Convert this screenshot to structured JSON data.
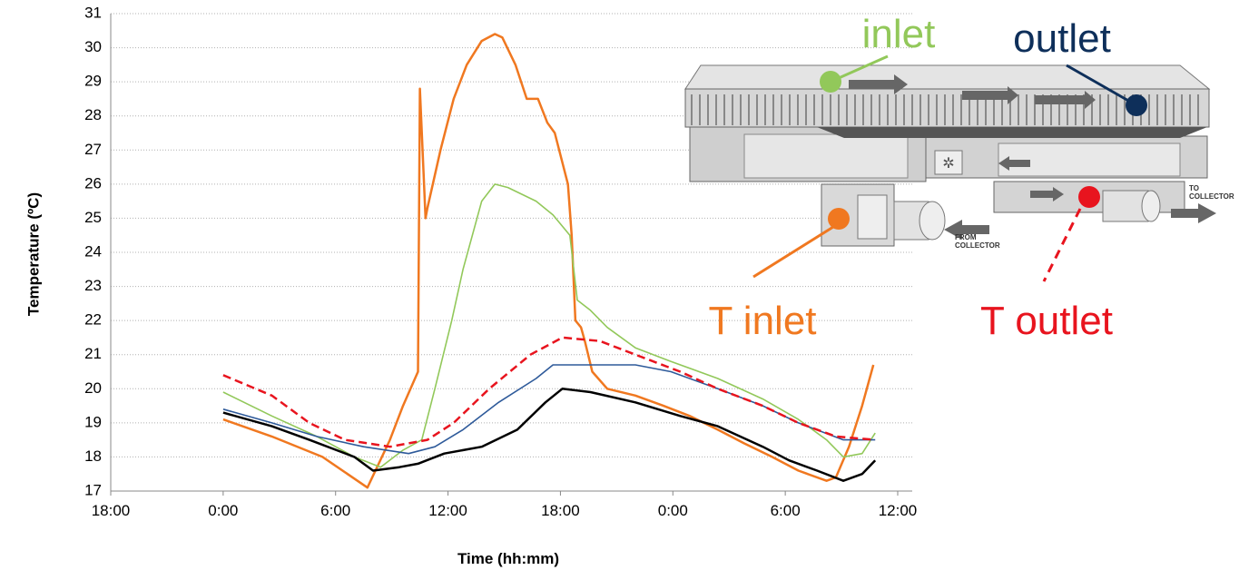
{
  "chart_data": {
    "type": "line",
    "y_label": "Temperature (ºC)",
    "x_label": "Time (hh:mm)",
    "xlim": [
      0,
      42
    ],
    "xticks": [
      {
        "value": 0,
        "label": "18:00"
      },
      {
        "value": 6,
        "label": "0:00"
      },
      {
        "value": 12,
        "label": "6:00"
      },
      {
        "value": 18,
        "label": "12:00"
      },
      {
        "value": 24,
        "label": "18:00"
      },
      {
        "value": 30,
        "label": "0:00"
      },
      {
        "value": 36,
        "label": "6:00"
      },
      {
        "value": 42,
        "label": "12:00"
      }
    ],
    "ylim": [
      17,
      31
    ],
    "yticks": [
      17,
      18,
      19,
      20,
      21,
      22,
      23,
      24,
      25,
      26,
      27,
      28,
      29,
      30,
      31
    ],
    "grid": true,
    "series": [
      {
        "name": "T inlet",
        "color": "#f07820",
        "line_width": 2.5,
        "dashed": false,
        "x": [
          6,
          8.6,
          11.3,
          13.7,
          14.9,
          15.6,
          16.4,
          16.5,
          16.8,
          16.9,
          17.6,
          18.3,
          19.0,
          19.8,
          20.5,
          20.9,
          21.6,
          22.2,
          22.8,
          23.3,
          23.7,
          24.4,
          24.6,
          24.8,
          25.1,
          25.3,
          25.7,
          26.5,
          28.0,
          29.5,
          30.9,
          32.4,
          33.8,
          35.3,
          36.7,
          38.2,
          38.7,
          39.4,
          40.1,
          40.7
        ],
        "values": [
          19.1,
          18.6,
          18.0,
          17.1,
          18.5,
          19.5,
          20.5,
          28.8,
          25.0,
          25.3,
          27.0,
          28.5,
          29.5,
          30.2,
          30.4,
          30.3,
          29.5,
          28.5,
          28.5,
          27.8,
          27.5,
          26.0,
          24.5,
          22.0,
          21.8,
          21.4,
          20.5,
          20.0,
          19.8,
          19.5,
          19.2,
          18.8,
          18.4,
          18.0,
          17.6,
          17.3,
          17.4,
          18.3,
          19.5,
          20.7
        ]
      },
      {
        "name": "inlet",
        "color": "#92c85a",
        "line_width": 1.6,
        "dashed": false,
        "x": [
          6,
          8.6,
          11.0,
          13.0,
          14.4,
          15.6,
          16.6,
          17.3,
          18.2,
          18.8,
          19.8,
          20.5,
          21.2,
          22.7,
          23.6,
          24.5,
          24.9,
          25.6,
          26.5,
          28.0,
          29.9,
          32.4,
          34.8,
          36.7,
          38.2,
          39.1,
          40.1,
          40.8
        ],
        "values": [
          19.9,
          19.2,
          18.6,
          18.0,
          17.7,
          18.2,
          18.5,
          20.0,
          22.0,
          23.5,
          25.5,
          26.0,
          25.9,
          25.5,
          25.1,
          24.5,
          22.6,
          22.3,
          21.8,
          21.2,
          20.8,
          20.3,
          19.7,
          19.1,
          18.5,
          18.0,
          18.1,
          18.7
        ]
      },
      {
        "name": "outlet",
        "color": "#2e5a9a",
        "line_width": 1.6,
        "dashed": false,
        "x": [
          6,
          8.6,
          11.0,
          13.5,
          15.9,
          17.3,
          18.8,
          20.7,
          22.7,
          23.6,
          28.0,
          29.9,
          32.4,
          34.8,
          36.7,
          39.1,
          40.8
        ],
        "values": [
          19.4,
          19.0,
          18.6,
          18.3,
          18.1,
          18.3,
          18.8,
          19.6,
          20.3,
          20.7,
          20.7,
          20.5,
          20.0,
          19.5,
          19.0,
          18.5,
          18.5
        ]
      },
      {
        "name": "T outlet",
        "color": "#e8141e",
        "line_width": 2.5,
        "dashed": true,
        "x": [
          6,
          8.6,
          10.6,
          12.5,
          14.9,
          16.9,
          18.3,
          20.2,
          22.4,
          24.1,
          26.1,
          28.0,
          30.4,
          32.4,
          34.8,
          36.7,
          38.7,
          40.8
        ],
        "values": [
          20.4,
          19.8,
          19.0,
          18.5,
          18.3,
          18.5,
          19.0,
          20.0,
          21.0,
          21.5,
          21.4,
          21.0,
          20.5,
          20.0,
          19.5,
          19.0,
          18.6,
          18.5
        ]
      },
      {
        "color": "#000000",
        "line_width": 2.5,
        "dashed": false,
        "x": [
          6,
          8.6,
          10.6,
          13.0,
          14.0,
          15.4,
          16.4,
          17.8,
          19.8,
          21.7,
          23.2,
          24.1,
          25.6,
          28.0,
          30.4,
          32.4,
          34.8,
          36.2,
          37.7,
          39.1,
          40.1,
          40.8
        ],
        "values": [
          19.3,
          18.9,
          18.5,
          18.0,
          17.6,
          17.7,
          17.8,
          18.1,
          18.3,
          18.8,
          19.6,
          20.0,
          19.9,
          19.6,
          19.2,
          18.9,
          18.3,
          17.9,
          17.6,
          17.3,
          17.5,
          17.9
        ]
      }
    ],
    "annotations": [
      [
        "FROM",
        "COLLECTOR"
      ],
      [
        "TO",
        "COLLECTOR"
      ]
    ]
  }
}
